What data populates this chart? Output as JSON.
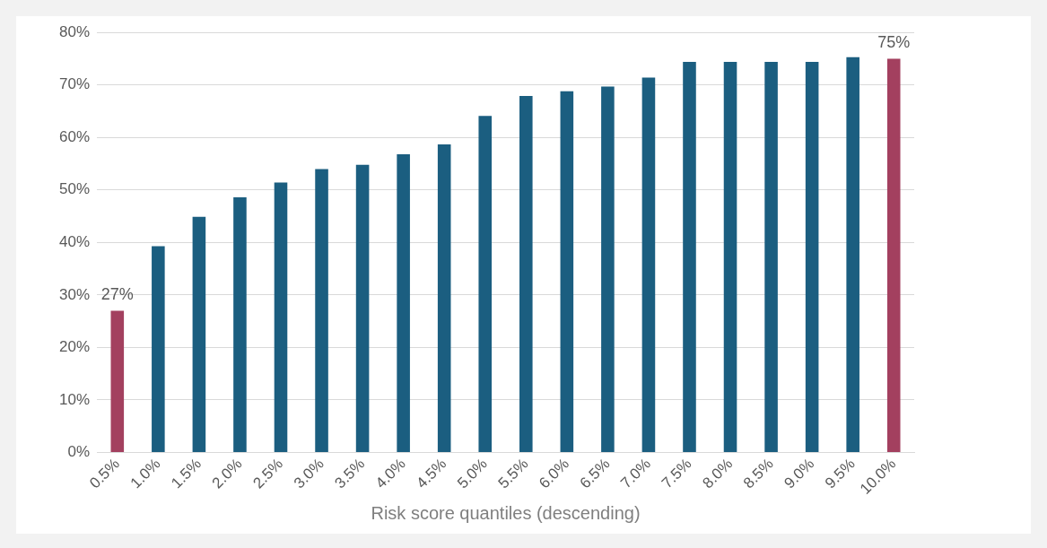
{
  "chart_data": {
    "type": "bar",
    "xlabel": "Risk score quantiles (descending)",
    "categories": [
      "0.5%",
      "1.0%",
      "1.5%",
      "2.0%",
      "2.5%",
      "3.0%",
      "3.5%",
      "4.0%",
      "4.5%",
      "5.0%",
      "5.5%",
      "6.0%",
      "6.5%",
      "7.0%",
      "7.5%",
      "8.0%",
      "8.5%",
      "9.0%",
      "9.5%",
      "10.0%"
    ],
    "values": [
      27,
      39.3,
      44.9,
      48.6,
      51.4,
      54,
      54.8,
      56.8,
      58.7,
      64.1,
      67.9,
      68.8,
      69.7,
      71.4,
      74.4,
      74.4,
      74.4,
      74.4,
      75.3,
      75
    ],
    "colors": [
      "#a3405f",
      "#1b5e80",
      "#1b5e80",
      "#1b5e80",
      "#1b5e80",
      "#1b5e80",
      "#1b5e80",
      "#1b5e80",
      "#1b5e80",
      "#1b5e80",
      "#1b5e80",
      "#1b5e80",
      "#1b5e80",
      "#1b5e80",
      "#1b5e80",
      "#1b5e80",
      "#1b5e80",
      "#1b5e80",
      "#1b5e80",
      "#a3405f"
    ],
    "value_labels": [
      "27%",
      null,
      null,
      null,
      null,
      null,
      null,
      null,
      null,
      null,
      null,
      null,
      null,
      null,
      null,
      null,
      null,
      null,
      null,
      "75%"
    ],
    "ylim": [
      0,
      80
    ],
    "yticks": [
      {
        "value": 0,
        "label": "0%"
      },
      {
        "value": 10,
        "label": "10%"
      },
      {
        "value": 20,
        "label": "20%"
      },
      {
        "value": 30,
        "label": "30%"
      },
      {
        "value": 40,
        "label": "40%"
      },
      {
        "value": 50,
        "label": "50%"
      },
      {
        "value": 60,
        "label": "60%"
      },
      {
        "value": 70,
        "label": "70%"
      },
      {
        "value": 80,
        "label": "80%"
      }
    ],
    "grid": "y",
    "legend": false
  }
}
